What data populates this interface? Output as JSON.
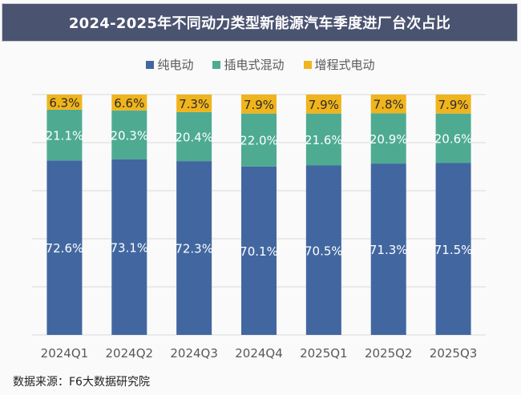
{
  "chart_data": {
    "type": "bar",
    "stacked": true,
    "title": "2024-2025年不同动力类型新能源汽车季度进厂台次占比",
    "categories": [
      "2024Q1",
      "2024Q2",
      "2024Q3",
      "2024Q4",
      "2025Q1",
      "2025Q2",
      "2025Q3"
    ],
    "series": [
      {
        "name": "纯电动",
        "color": "#4267a0",
        "label_color": "#ffffff",
        "values": [
          72.6,
          73.1,
          72.3,
          70.1,
          70.5,
          71.3,
          71.5
        ],
        "labels": [
          "72.6%",
          "73.1%",
          "72.3%",
          "70.1%",
          "70.5%",
          "71.3%",
          "71.5%"
        ]
      },
      {
        "name": "插电式混动",
        "color": "#4eab92",
        "label_color": "#ffffff",
        "values": [
          21.1,
          20.3,
          20.4,
          22.0,
          21.6,
          20.9,
          20.6
        ],
        "labels": [
          "21.1%",
          "20.3%",
          "20.4%",
          "22.0%",
          "21.6%",
          "20.9%",
          "20.6%"
        ]
      },
      {
        "name": "增程式电动",
        "color": "#f0b41c",
        "label_color": "#2a2a2a",
        "values": [
          6.3,
          6.6,
          7.3,
          7.9,
          7.9,
          7.8,
          7.9
        ],
        "labels": [
          "6.3%",
          "6.6%",
          "7.3%",
          "7.9%",
          "7.9%",
          "7.8%",
          "7.9%"
        ]
      }
    ],
    "ylim": [
      0,
      100
    ],
    "grid": true,
    "legend_position": "top-center",
    "xlabel": "",
    "ylabel": ""
  },
  "header": {
    "title": "2024-2025年不同动力类型新能源汽车季度进厂台次占比",
    "background": "#4a5370"
  },
  "legend": {
    "items": [
      "纯电动",
      "插电式混动",
      "增程式电动"
    ]
  },
  "footer": {
    "source": "数据来源：F6大数据研究院"
  }
}
